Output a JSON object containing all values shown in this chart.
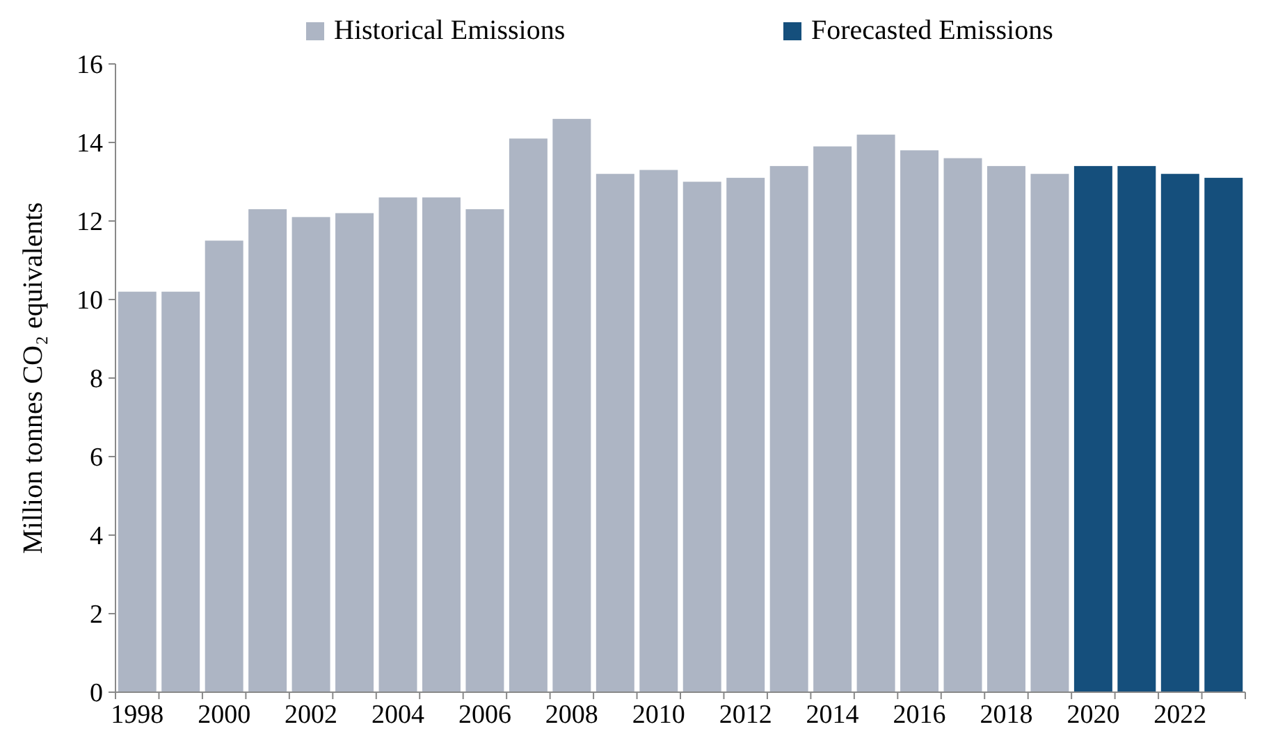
{
  "chart_data": {
    "type": "bar",
    "ylabel": "Million tonnes CO₂ equivalents",
    "stacked": true,
    "legend": "top",
    "grid": false,
    "categories": [
      "1998",
      null,
      "2000",
      null,
      "2002",
      null,
      "2004",
      null,
      "2006",
      null,
      "2008",
      null,
      "2010",
      null,
      "2012",
      null,
      "2014",
      null,
      "2016",
      null,
      "2018",
      null,
      "2020",
      null,
      "2022",
      null
    ],
    "series": [
      {
        "name": "Historical Emissions",
        "color": "#adb5c4",
        "values": [
          10.2,
          10.2,
          11.5,
          12.3,
          12.1,
          12.2,
          12.6,
          12.6,
          12.3,
          14.1,
          14.6,
          13.2,
          13.3,
          13.0,
          13.1,
          13.4,
          13.9,
          14.2,
          13.8,
          13.6,
          13.4,
          13.2,
          null,
          null,
          null,
          null
        ]
      },
      {
        "name": "Forecasted Emissions",
        "color": "#154f7c",
        "values": [
          null,
          null,
          null,
          null,
          null,
          null,
          null,
          null,
          null,
          null,
          null,
          null,
          null,
          null,
          null,
          null,
          null,
          null,
          null,
          null,
          null,
          null,
          13.4,
          13.4,
          13.2,
          13.1
        ]
      }
    ],
    "ylim": [
      0,
      16
    ],
    "yticks": [
      0,
      2,
      4,
      6,
      8,
      10,
      12,
      14,
      16
    ]
  }
}
